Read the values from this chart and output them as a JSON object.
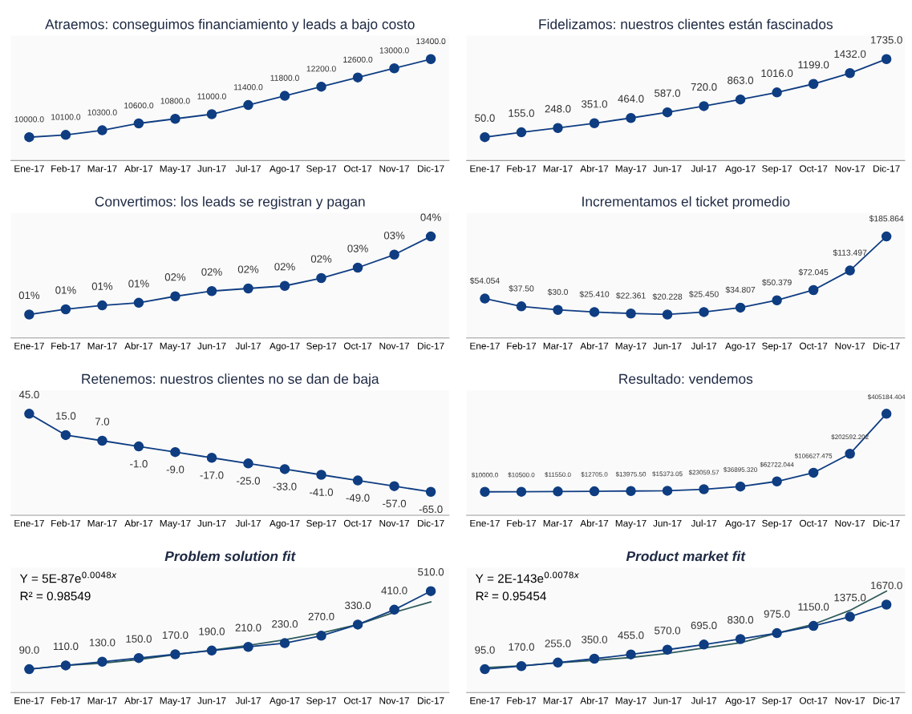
{
  "chart_data": [
    {
      "type": "line",
      "title": "Atraemos: conseguimos financiamiento y leads a bajo costo",
      "categories": [
        "Ene-17",
        "Feb-17",
        "Mar-17",
        "Abr-17",
        "May-17",
        "Jun-17",
        "Jul-17",
        "Ago-17",
        "Sep-17",
        "Oct-17",
        "Nov-17",
        "Dic-17"
      ],
      "marker": "circle",
      "series": [
        {
          "color": "#0f3d82",
          "values": [
            10000,
            10100,
            10300,
            10600,
            10800,
            11000,
            11400,
            11800,
            12200,
            12600,
            13000,
            13400
          ],
          "value_labels": [
            "10000.0",
            "10100.0",
            "10300.0",
            "10600.0",
            "10800.0",
            "11000.0",
            "11400.0",
            "11800.0",
            "12200.0",
            "12600.0",
            "13000.0",
            "13400.0"
          ]
        }
      ]
    },
    {
      "type": "line",
      "title": "Fidelizamos: nuestros clientes están fascinados",
      "categories": [
        "Ene-17",
        "Feb-17",
        "Mar-17",
        "Abr-17",
        "May-17",
        "Jun-17",
        "Jul-17",
        "Ago-17",
        "Sep-17",
        "Oct-17",
        "Nov-17",
        "Dic-17"
      ],
      "marker": "circle",
      "series": [
        {
          "color": "#0f3d82",
          "values": [
            50,
            155,
            248,
            351,
            464,
            587,
            720,
            863,
            1016,
            1199,
            1432,
            1735
          ],
          "value_labels": [
            "50.0",
            "155.0",
            "248.0",
            "351.0",
            "464.0",
            "587.0",
            "720.0",
            "863.0",
            "1016.0",
            "1199.0",
            "1432.0",
            "1735.0"
          ]
        }
      ]
    },
    {
      "type": "line",
      "title": "Convertimos: los leads se registran y pagan",
      "categories": [
        "Ene-17",
        "Feb-17",
        "Mar-17",
        "Abr-17",
        "May-17",
        "Jun-17",
        "Jul-17",
        "Ago-17",
        "Sep-17",
        "Oct-17",
        "Nov-17",
        "Dic-17"
      ],
      "marker": "circle",
      "series": [
        {
          "color": "#0f3d82",
          "values": [
            1.0,
            1.2,
            1.35,
            1.45,
            1.7,
            1.9,
            2.0,
            2.1,
            2.4,
            2.8,
            3.3,
            4.0
          ],
          "value_labels": [
            "01%",
            "01%",
            "01%",
            "01%",
            "02%",
            "02%",
            "02%",
            "02%",
            "02%",
            "03%",
            "03%",
            "04%"
          ]
        }
      ]
    },
    {
      "type": "line",
      "title": "Incrementamos el ticket promedio",
      "categories": [
        "Ene-17",
        "Feb-17",
        "Mar-17",
        "Abr-17",
        "May-17",
        "Jun-17",
        "Jul-17",
        "Ago-17",
        "Sep-17",
        "Oct-17",
        "Nov-17",
        "Dic-17"
      ],
      "marker": "circle",
      "series": [
        {
          "color": "#0f3d82",
          "values": [
            54.054,
            37.5,
            30.0,
            25.41,
            22.361,
            20.228,
            25.45,
            34.807,
            50.379,
            72.045,
            113.497,
            185.864
          ],
          "value_labels": [
            "$54.054",
            "$37.50",
            "$30.0",
            "$25.410",
            "$22.361",
            "$20.228",
            "$25.450",
            "$34.807",
            "$50.379",
            "$72.045",
            "$113.497",
            "$185.864"
          ]
        }
      ]
    },
    {
      "type": "line",
      "title": "Retenemos: nuestros clientes no se dan de baja",
      "categories": [
        "Ene-17",
        "Feb-17",
        "Mar-17",
        "Abr-17",
        "May-17",
        "Jun-17",
        "Jul-17",
        "Ago-17",
        "Sep-17",
        "Oct-17",
        "Nov-17",
        "Dic-17"
      ],
      "marker": "circle",
      "series": [
        {
          "color": "#0f3d82",
          "values": [
            45,
            15,
            7,
            -1,
            -9,
            -17,
            -25,
            -33,
            -41,
            -49,
            -57,
            -65
          ],
          "value_labels": [
            "45.0",
            "15.0",
            "7.0",
            "-1.0",
            "-9.0",
            "-17.0",
            "-25.0",
            "-33.0",
            "-41.0",
            "-49.0",
            "-57.0",
            "-65.0"
          ]
        }
      ]
    },
    {
      "type": "line",
      "title": "Resultado: vendemos",
      "categories": [
        "Ene-17",
        "Feb-17",
        "Mar-17",
        "Abr-17",
        "May-17",
        "Jun-17",
        "Jul-17",
        "Ago-17",
        "Sep-17",
        "Oct-17",
        "Nov-17",
        "Dic-17"
      ],
      "marker": "circle",
      "series": [
        {
          "color": "#0f3d82",
          "values": [
            10000,
            10500,
            11550,
            12705,
            13975.5,
            15373.05,
            23059.57,
            36895.32,
            62722.044,
            106627.475,
            202592.202,
            405184.404
          ],
          "value_labels": [
            "$10000.0",
            "$10500.0",
            "$11550.0",
            "$12705.0",
            "$13975.50",
            "$15373.05",
            "$23059.57",
            "$36895.320",
            "$62722.044",
            "$106627.475",
            "$202592.202",
            "$405184.404"
          ]
        }
      ]
    },
    {
      "type": "line",
      "title": "Problem solution fit",
      "categories": [
        "Ene-17",
        "Feb-17",
        "Mar-17",
        "Abr-17",
        "May-17",
        "Jun-17",
        "Jul-17",
        "Ago-17",
        "Sep-17",
        "Oct-17",
        "Nov-17",
        "Dic-17"
      ],
      "marker": "circle",
      "annotations": [
        "Y = 5E-87e$^{0.0048x}$",
        "R² = 0.98549"
      ],
      "series": [
        {
          "color": "#0f3d82",
          "values": [
            90,
            110,
            130,
            150,
            170,
            190,
            210,
            230,
            270,
            330,
            410,
            510
          ],
          "value_labels": [
            "90.0",
            "110.0",
            "130.0",
            "150.0",
            "170.0",
            "190.0",
            "210.0",
            "230.0",
            "270.0",
            "330.0",
            "410.0",
            "510.0"
          ]
        },
        {
          "type": "line",
          "marker": "none",
          "color": "#2f5a5a",
          "values": [
            90,
            110,
            122,
            142,
            168,
            192,
            218,
            248,
            285,
            330,
            396,
            452
          ]
        }
      ]
    },
    {
      "type": "line",
      "title": "Product market fit",
      "categories": [
        "Ene-17",
        "Feb-17",
        "Mar-17",
        "Abr-17",
        "May-17",
        "Jun-17",
        "Jul-17",
        "Ago-17",
        "Sep-17",
        "Oct-17",
        "Nov-17",
        "Dic-17"
      ],
      "marker": "circle",
      "annotations": [
        "Y = 2E-143e$^{0.0078x}$",
        "R² = 0.95454"
      ],
      "series": [
        {
          "color": "#0f3d82",
          "values": [
            95,
            170,
            255,
            350,
            455,
            570,
            695,
            830,
            975,
            1150,
            1375,
            1670
          ],
          "value_labels": [
            "95.0",
            "170.0",
            "255.0",
            "350.0",
            "455.0",
            "570.0",
            "695.0",
            "830.0",
            "975.0",
            "1150.0",
            "1375.0",
            "1670.0"
          ]
        },
        {
          "type": "line",
          "marker": "none",
          "color": "#2f5a5a",
          "values": [
            130,
            175,
            250,
            310,
            380,
            480,
            610,
            740,
            975,
            1190,
            1530,
            2000
          ]
        }
      ]
    }
  ]
}
